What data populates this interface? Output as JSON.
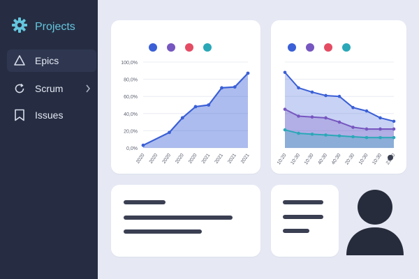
{
  "sidebar": {
    "brand": {
      "title": "Projects",
      "icon": "gear-icon",
      "color": "#64c6de"
    },
    "items": [
      {
        "label": "Epics",
        "icon": "triangle-icon",
        "active": true
      },
      {
        "label": "Scrum",
        "icon": "refresh-icon",
        "has_submenu": true
      },
      {
        "label": "Issues",
        "icon": "bookmark-icon"
      }
    ]
  },
  "legend_colors": [
    "#3a5fd6",
    "#7656c0",
    "#e44c63",
    "#2aa8b8"
  ],
  "chart_data": [
    {
      "type": "area",
      "y_ticks": [
        "100,0%",
        "80,0%",
        "60,0%",
        "40,0%",
        "20,0%",
        "0,0%"
      ],
      "ylim": [
        0,
        100
      ],
      "x_labels": [
        "2020",
        "2020",
        "2020",
        "2020",
        "2020",
        "2021",
        "2021",
        "2021",
        "2021"
      ],
      "series": [
        {
          "color": "#3a5fd6",
          "points": [
            [
              0,
              3
            ],
            [
              2,
              18
            ],
            [
              3,
              35
            ],
            [
              4,
              48
            ],
            [
              5,
              50
            ],
            [
              6,
              70
            ],
            [
              7,
              71
            ],
            [
              8,
              87
            ]
          ]
        }
      ]
    },
    {
      "type": "area",
      "x_labels": [
        "10:20",
        "10:30",
        "10:30",
        "40:30",
        "40:30",
        "20:30",
        "10:30",
        "10:30",
        "21:40"
      ],
      "ylim": [
        0,
        100
      ],
      "series": [
        {
          "color": "#3a5fd6",
          "values": [
            88,
            70,
            65,
            61,
            60,
            47,
            43,
            35,
            31
          ]
        },
        {
          "color": "#7656c0",
          "values": [
            45,
            37,
            36,
            35,
            30,
            24,
            22,
            22,
            22
          ]
        },
        {
          "color": "#2aa8b8",
          "values": [
            21,
            17,
            16,
            15,
            14,
            13,
            12,
            12,
            12
          ]
        }
      ]
    }
  ],
  "placeholders": {
    "card_left_lines": [
      0.38,
      0.98,
      0.72
    ],
    "card_right_lines": [
      0.7,
      0.7,
      0.48
    ]
  },
  "profile": {
    "icon": "user-avatar-icon"
  }
}
